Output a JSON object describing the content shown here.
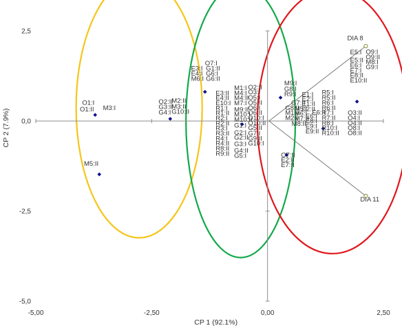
{
  "chart_data": {
    "type": "scatter",
    "xlabel": "CP 1 (92.1%)",
    "ylabel": "CP 2 (7.9%)",
    "xlim": [
      -5.0,
      2.5
    ],
    "ylim": [
      -5.0,
      2.5
    ],
    "x_ticks": [
      {
        "value": -5.0,
        "label": "-5,00"
      },
      {
        "value": -2.5,
        "label": "-2,50"
      },
      {
        "value": 0.0,
        "label": "0,00"
      },
      {
        "value": 2.5,
        "label": "2,50"
      }
    ],
    "y_ticks": [
      {
        "value": 2.5,
        "label": "2,5"
      },
      {
        "value": 0.0,
        "label": "0,0"
      },
      {
        "value": -2.5,
        "label": "-2,5"
      },
      {
        "value": -5.0,
        "label": "-5,0"
      }
    ],
    "points": [
      {
        "x": -3.72,
        "y": 0.17
      },
      {
        "x": -3.63,
        "y": -1.48
      },
      {
        "x": -2.1,
        "y": 0.06
      },
      {
        "x": -1.35,
        "y": 0.81
      },
      {
        "x": -0.55,
        "y": -0.09
      },
      {
        "x": 0.28,
        "y": 0.65
      },
      {
        "x": 0.41,
        "y": -0.94
      },
      {
        "x": 1.2,
        "y": -0.21
      },
      {
        "x": 1.93,
        "y": 0.54
      }
    ],
    "vectors": [
      {
        "name": "DIA 8",
        "x": 2.12,
        "y": 2.08
      },
      {
        "name": "DIA 11",
        "x": 2.12,
        "y": -2.08
      }
    ],
    "vector_origin": {
      "x": 0.03,
      "y": 0.0
    },
    "ellipses": [
      {
        "group": "yellow",
        "color": "#f5c518",
        "cx": -2.77,
        "cy": 0.37,
        "rx": 1.36,
        "ry": 3.61
      },
      {
        "group": "green",
        "color": "#12a84a",
        "cx": -0.58,
        "cy": 0.0,
        "rx": 1.18,
        "ry": 3.79
      },
      {
        "group": "red",
        "color": "#e0161b",
        "cx": 1.4,
        "cy": 0.0,
        "rx": 1.62,
        "ry": 3.68
      }
    ],
    "point_labels": [
      {
        "text": "O1:I",
        "x": -4.0,
        "y": 0.45
      },
      {
        "text": "O1:II",
        "x": -4.05,
        "y": 0.27
      },
      {
        "text": "M3:I",
        "x": -3.55,
        "y": 0.31
      },
      {
        "text": "M5:II",
        "x": -3.96,
        "y": -1.24
      },
      {
        "text": "O2:II",
        "x": -2.35,
        "y": 0.48
      },
      {
        "text": "M2:II",
        "x": -2.07,
        "y": 0.51
      },
      {
        "text": "M3:II",
        "x": -2.07,
        "y": 0.34
      },
      {
        "text": "G3:II",
        "x": -2.35,
        "y": 0.33
      },
      {
        "text": "G4:I",
        "x": -2.35,
        "y": 0.18
      },
      {
        "text": "G10:II",
        "x": -2.07,
        "y": 0.2
      },
      {
        "text": "O7:I",
        "x": -1.35,
        "y": 1.55
      },
      {
        "text": "E3:I",
        "x": -1.65,
        "y": 1.4
      },
      {
        "text": "G1:II",
        "x": -1.33,
        "y": 1.4
      },
      {
        "text": "E4:I",
        "x": -1.65,
        "y": 1.26
      },
      {
        "text": "G6:I",
        "x": -1.33,
        "y": 1.26
      },
      {
        "text": "M6:I",
        "x": -1.65,
        "y": 1.12
      },
      {
        "text": "G6:II",
        "x": -1.33,
        "y": 1.12
      },
      {
        "text": "E3:II",
        "x": -1.12,
        "y": 0.72
      },
      {
        "text": "M1:I",
        "x": -0.72,
        "y": 0.86
      },
      {
        "text": "O2:II",
        "x": -0.42,
        "y": 0.88
      },
      {
        "text": "E4:II",
        "x": -1.12,
        "y": 0.58
      },
      {
        "text": "M4:I",
        "x": -0.72,
        "y": 0.72
      },
      {
        "text": "O3:I",
        "x": -0.42,
        "y": 0.74
      },
      {
        "text": "E10:I",
        "x": -1.12,
        "y": 0.44
      },
      {
        "text": "M4:II",
        "x": -0.72,
        "y": 0.58
      },
      {
        "text": "O5:I",
        "x": -0.42,
        "y": 0.59
      },
      {
        "text": "R1:I",
        "x": -1.12,
        "y": 0.3
      },
      {
        "text": "M7:I",
        "x": -0.72,
        "y": 0.44
      },
      {
        "text": "O5:II",
        "x": -0.42,
        "y": 0.45
      },
      {
        "text": "R1:II",
        "x": -1.12,
        "y": 0.16
      },
      {
        "text": "O6:I",
        "x": -0.42,
        "y": 0.31
      },
      {
        "text": "M9:II",
        "x": -0.72,
        "y": 0.26
      },
      {
        "text": "O6:II",
        "x": -0.42,
        "y": 0.17
      },
      {
        "text": "R2:I",
        "x": -1.12,
        "y": 0.02
      },
      {
        "text": "M10:I",
        "x": -0.72,
        "y": 0.12
      },
      {
        "text": "O10:I",
        "x": -0.42,
        "y": 0.03
      },
      {
        "text": "R2:II",
        "x": -1.12,
        "y": -0.12
      },
      {
        "text": "M10:II",
        "x": -0.72,
        "y": -0.02
      },
      {
        "text": "O10:II",
        "x": -0.42,
        "y": -0.11
      },
      {
        "text": "R3:I",
        "x": -1.12,
        "y": -0.26
      },
      {
        "text": "G1:I",
        "x": -0.72,
        "y": -0.18
      },
      {
        "text": "G5:II",
        "x": -0.42,
        "y": -0.25
      },
      {
        "text": "R3:II",
        "x": -1.12,
        "y": -0.4
      },
      {
        "text": "G2:I",
        "x": -0.72,
        "y": -0.38
      },
      {
        "text": "G7:I",
        "x": -0.42,
        "y": -0.4
      },
      {
        "text": "R4:I",
        "x": -1.12,
        "y": -0.54
      },
      {
        "text": "G2:II",
        "x": -0.72,
        "y": -0.52
      },
      {
        "text": "G9:II",
        "x": -0.42,
        "y": -0.54
      },
      {
        "text": "R4:II",
        "x": -1.12,
        "y": -0.68
      },
      {
        "text": "G3:I",
        "x": -0.72,
        "y": -0.7
      },
      {
        "text": "G10:I",
        "x": -0.42,
        "y": -0.68
      },
      {
        "text": "R8:II",
        "x": -1.12,
        "y": -0.82
      },
      {
        "text": "G4:II",
        "x": -0.72,
        "y": -0.88
      },
      {
        "text": "R9:II",
        "x": -1.12,
        "y": -0.96
      },
      {
        "text": "G5:I",
        "x": -0.72,
        "y": -1.02
      },
      {
        "text": "M9:I",
        "x": 0.36,
        "y": 0.99
      },
      {
        "text": "G8:I",
        "x": 0.36,
        "y": 0.83
      },
      {
        "text": "R9:I",
        "x": 0.36,
        "y": 0.69
      },
      {
        "text": "E1:I",
        "x": 0.74,
        "y": 0.68
      },
      {
        "text": "R5:I",
        "x": 1.17,
        "y": 0.73
      },
      {
        "text": "E2:I",
        "x": 0.74,
        "y": 0.55
      },
      {
        "text": "R5:II",
        "x": 1.17,
        "y": 0.59
      },
      {
        "text": "G7:II",
        "x": 0.51,
        "y": 0.45
      },
      {
        "text": "E1:II",
        "x": 0.74,
        "y": 0.42
      },
      {
        "text": "R6:I",
        "x": 1.17,
        "y": 0.45
      },
      {
        "text": "G8:II",
        "x": 0.38,
        "y": 0.31
      },
      {
        "text": "M5:I",
        "x": 0.58,
        "y": 0.29
      },
      {
        "text": "E2:II",
        "x": 0.74,
        "y": 0.28
      },
      {
        "text": "E6:II",
        "x": 0.96,
        "y": 0.18
      },
      {
        "text": "R6:II",
        "x": 1.17,
        "y": 0.31
      },
      {
        "text": "M1:II",
        "x": 0.38,
        "y": 0.17
      },
      {
        "text": "M6:I",
        "x": 0.58,
        "y": 0.15
      },
      {
        "text": "E6:I",
        "x": 0.82,
        "y": 0.08
      },
      {
        "text": "R7:I",
        "x": 1.17,
        "y": 0.17
      },
      {
        "text": "M2:I",
        "x": 0.38,
        "y": 0.03
      },
      {
        "text": "M7:II",
        "x": 0.58,
        "y": 0.01
      },
      {
        "text": "E8:I",
        "x": 0.82,
        "y": -0.06
      },
      {
        "text": "R7:II",
        "x": 1.17,
        "y": 0.03
      },
      {
        "text": "M8:II",
        "x": 0.52,
        "y": -0.13
      },
      {
        "text": "E9:I",
        "x": 0.82,
        "y": -0.2
      },
      {
        "text": "R8:I",
        "x": 1.17,
        "y": -0.11
      },
      {
        "text": "E9:II",
        "x": 0.82,
        "y": -0.34
      },
      {
        "text": "R10:I",
        "x": 1.17,
        "y": -0.25
      },
      {
        "text": "R10:II",
        "x": 1.17,
        "y": -0.39
      },
      {
        "text": "O7:II",
        "x": 0.29,
        "y": -1.0
      },
      {
        "text": "E2:II",
        "x": 0.29,
        "y": -1.14
      },
      {
        "text": "E7:II",
        "x": 0.29,
        "y": -1.28
      },
      {
        "text": "O3:II",
        "x": 1.73,
        "y": 0.17
      },
      {
        "text": "O4:I",
        "x": 1.73,
        "y": 0.03
      },
      {
        "text": "O4:II",
        "x": 1.73,
        "y": -0.11
      },
      {
        "text": "O8:I",
        "x": 1.73,
        "y": -0.25
      },
      {
        "text": "O8:II",
        "x": 1.73,
        "y": -0.39
      },
      {
        "text": "E5:I",
        "x": 1.78,
        "y": 1.85
      },
      {
        "text": "O9:I",
        "x": 2.12,
        "y": 1.86
      },
      {
        "text": "O9:II",
        "x": 2.12,
        "y": 1.72
      },
      {
        "text": "E5:II",
        "x": 1.78,
        "y": 1.63
      },
      {
        "text": "M8:I",
        "x": 2.12,
        "y": 1.58
      },
      {
        "text": "E6:I",
        "x": 1.78,
        "y": 1.49
      },
      {
        "text": "G9:I",
        "x": 2.12,
        "y": 1.44
      },
      {
        "text": "E7:I",
        "x": 1.78,
        "y": 1.35
      },
      {
        "text": "E8:II",
        "x": 1.78,
        "y": 1.21
      },
      {
        "text": "E10:II",
        "x": 1.78,
        "y": 1.07
      }
    ],
    "vector_labels": [
      {
        "text": "DIA 8",
        "x": 1.72,
        "y": 2.24
      },
      {
        "text": "DIA 11",
        "x": 2.0,
        "y": -2.23
      }
    ]
  }
}
